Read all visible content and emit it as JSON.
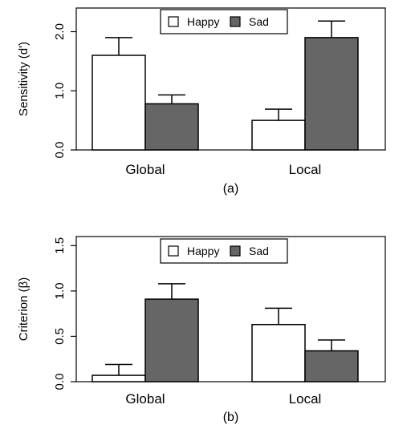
{
  "chart_data": [
    {
      "type": "bar",
      "panel_label": "(a)",
      "categories": [
        "Global",
        "Local"
      ],
      "ylabel": "Sensitivity (d')",
      "ylim": [
        0,
        2.4
      ],
      "yticks": [
        0.0,
        1.0,
        2.0
      ],
      "ytick_labels": [
        "0.0",
        "1.0",
        "2.0"
      ],
      "series": [
        {
          "name": "Happy",
          "color": "#ffffff",
          "values": [
            1.6,
            0.5
          ],
          "errors": [
            0.3,
            0.19
          ]
        },
        {
          "name": "Sad",
          "color": "#666666",
          "values": [
            0.78,
            1.9
          ],
          "errors": [
            0.15,
            0.28
          ]
        }
      ],
      "legend": {
        "position": "top-center"
      },
      "grid": false
    },
    {
      "type": "bar",
      "panel_label": "(b)",
      "categories": [
        "Global",
        "Local"
      ],
      "ylabel": "Criterion (β)",
      "ylim": [
        0,
        1.6
      ],
      "yticks": [
        0.0,
        0.5,
        1.0,
        1.5
      ],
      "ytick_labels": [
        "0.0",
        "0.5",
        "1.0",
        "1.5"
      ],
      "series": [
        {
          "name": "Happy",
          "color": "#ffffff",
          "values": [
            0.07,
            0.63
          ],
          "errors": [
            0.12,
            0.18
          ]
        },
        {
          "name": "Sad",
          "color": "#666666",
          "values": [
            0.91,
            0.34
          ],
          "errors": [
            0.17,
            0.12
          ]
        }
      ],
      "legend": {
        "position": "top-center"
      },
      "grid": false
    }
  ]
}
